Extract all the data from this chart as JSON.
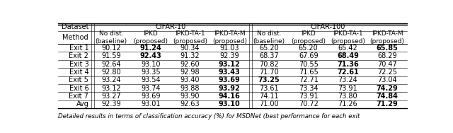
{
  "caption": "Detailed results in terms of classification accuracy (%) for MSDNet (best performance for each exit",
  "row_labels": [
    "Exit 1",
    "Exit 2",
    "Exit 3",
    "Exit 4",
    "Exit 5",
    "Exit 6",
    "Exit 7",
    "Avg"
  ],
  "cifar10_data": [
    [
      "90.12",
      "91.24",
      "90.34",
      "91.03"
    ],
    [
      "91.59",
      "92.43",
      "91.32",
      "92.39"
    ],
    [
      "92.64",
      "93.10",
      "92.60",
      "93.12"
    ],
    [
      "92.80",
      "93.35",
      "92.98",
      "93.43"
    ],
    [
      "93.24",
      "93.54",
      "93.40",
      "93.69"
    ],
    [
      "93.12",
      "93.74",
      "93.88",
      "93.92"
    ],
    [
      "93.27",
      "93.69",
      "93.90",
      "94.16"
    ],
    [
      "92.39",
      "93.01",
      "92.63",
      "93.10"
    ]
  ],
  "cifar100_data": [
    [
      "65.20",
      "65.20",
      "65.42",
      "65.85"
    ],
    [
      "68.37",
      "67.69",
      "68.49",
      "68.29"
    ],
    [
      "70.82",
      "70.55",
      "71.36",
      "70.47"
    ],
    [
      "71.70",
      "71.65",
      "72.61",
      "72.25"
    ],
    [
      "73.25",
      "72.71",
      "73.24",
      "73.04"
    ],
    [
      "73.61",
      "73.34",
      "73.91",
      "74.29"
    ],
    [
      "74.11",
      "73.91",
      "73.80",
      "74.84"
    ],
    [
      "71.00",
      "70.72",
      "71.26",
      "71.29"
    ]
  ],
  "cifar10_bold": [
    [
      0,
      1,
      0,
      0
    ],
    [
      0,
      1,
      0,
      0
    ],
    [
      0,
      0,
      0,
      1
    ],
    [
      0,
      0,
      0,
      1
    ],
    [
      0,
      0,
      0,
      1
    ],
    [
      0,
      0,
      0,
      1
    ],
    [
      0,
      0,
      0,
      1
    ],
    [
      0,
      0,
      0,
      1
    ]
  ],
  "cifar100_bold": [
    [
      0,
      0,
      0,
      1
    ],
    [
      0,
      0,
      1,
      0
    ],
    [
      0,
      0,
      1,
      0
    ],
    [
      0,
      0,
      1,
      0
    ],
    [
      1,
      0,
      0,
      0
    ],
    [
      0,
      0,
      0,
      1
    ],
    [
      0,
      0,
      0,
      1
    ],
    [
      0,
      0,
      0,
      1
    ]
  ],
  "bg_color": "#ffffff",
  "text_color": "#000000",
  "fs": 7.0,
  "fs_small": 6.5
}
